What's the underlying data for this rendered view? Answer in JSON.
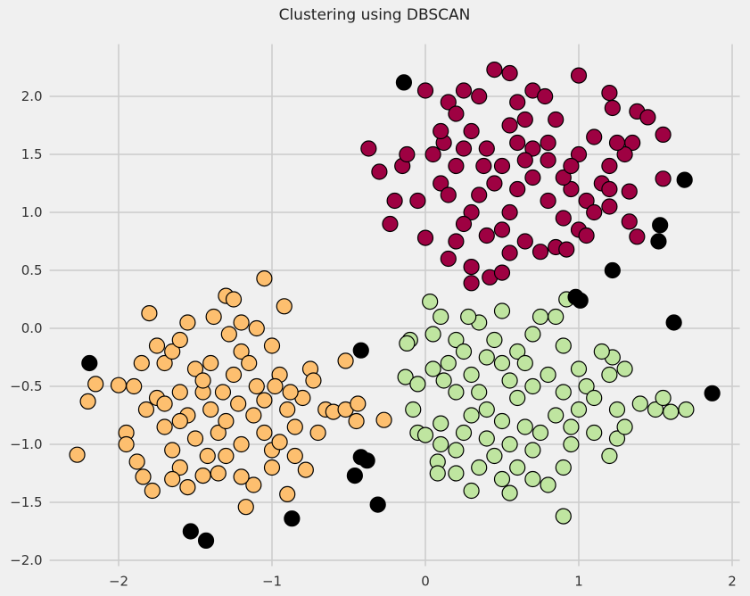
{
  "chart_data": {
    "type": "scatter",
    "title": "Clustering using DBSCAN",
    "xlabel": "",
    "ylabel": "",
    "xlim": [
      -2.45,
      2.05
    ],
    "ylim": [
      -2.05,
      2.45
    ],
    "xticks": [
      -2,
      -1,
      0,
      1,
      2
    ],
    "xtick_labels": [
      "−2",
      "−1",
      "0",
      "1",
      "2"
    ],
    "yticks": [
      -2.0,
      -1.5,
      -1.0,
      -0.5,
      0.0,
      0.5,
      1.0,
      1.5,
      2.0
    ],
    "ytick_labels": [
      "−2.0",
      "−1.5",
      "−1.0",
      "−0.5",
      "0.0",
      "0.5",
      "1.0",
      "1.5",
      "2.0"
    ],
    "grid": true,
    "background": "#f0f0f0",
    "grid_color": "#cbcbcb",
    "marker_edge_color": "#000000",
    "series": [
      {
        "color": "#9e0142",
        "points": [
          [
            -0.23,
            0.9
          ],
          [
            -0.2,
            1.1
          ],
          [
            -0.15,
            1.4
          ],
          [
            -0.12,
            1.5
          ],
          [
            -0.3,
            1.35
          ],
          [
            -0.37,
            1.55
          ],
          [
            -0.05,
            1.1
          ],
          [
            0.0,
            2.05
          ],
          [
            0.05,
            1.5
          ],
          [
            0.1,
            1.25
          ],
          [
            0.12,
            1.6
          ],
          [
            0.15,
            1.95
          ],
          [
            0.2,
            1.85
          ],
          [
            0.25,
            2.05
          ],
          [
            0.3,
            1.7
          ],
          [
            0.35,
            2.0
          ],
          [
            0.38,
            1.4
          ],
          [
            0.4,
            1.55
          ],
          [
            0.45,
            2.23
          ],
          [
            0.55,
            2.2
          ],
          [
            0.6,
            1.95
          ],
          [
            0.7,
            2.05
          ],
          [
            0.78,
            2.0
          ],
          [
            0.85,
            1.8
          ],
          [
            1.0,
            2.18
          ],
          [
            1.2,
            2.03
          ],
          [
            1.22,
            1.9
          ],
          [
            1.38,
            1.87
          ],
          [
            1.45,
            1.82
          ],
          [
            1.55,
            1.67
          ],
          [
            1.35,
            1.6
          ],
          [
            1.3,
            1.5
          ],
          [
            1.2,
            1.4
          ],
          [
            1.15,
            1.25
          ],
          [
            1.05,
            1.1
          ],
          [
            0.95,
            1.2
          ],
          [
            0.9,
            1.3
          ],
          [
            0.8,
            1.45
          ],
          [
            0.7,
            1.55
          ],
          [
            0.6,
            1.6
          ],
          [
            0.5,
            1.4
          ],
          [
            0.45,
            1.25
          ],
          [
            0.35,
            1.15
          ],
          [
            0.3,
            1.0
          ],
          [
            0.25,
            0.9
          ],
          [
            0.2,
            0.75
          ],
          [
            0.15,
            0.6
          ],
          [
            0.3,
            0.53
          ],
          [
            0.3,
            0.39
          ],
          [
            0.42,
            0.44
          ],
          [
            0.5,
            0.48
          ],
          [
            0.55,
            0.65
          ],
          [
            0.65,
            0.75
          ],
          [
            0.75,
            0.66
          ],
          [
            0.85,
            0.7
          ],
          [
            0.92,
            0.68
          ],
          [
            1.0,
            0.85
          ],
          [
            1.05,
            0.8
          ],
          [
            1.1,
            1.0
          ],
          [
            1.2,
            1.05
          ],
          [
            1.33,
            0.92
          ],
          [
            1.38,
            0.79
          ],
          [
            1.55,
            1.29
          ],
          [
            1.33,
            1.18
          ],
          [
            0.0,
            0.78
          ],
          [
            0.55,
            1.0
          ],
          [
            0.6,
            1.2
          ],
          [
            0.7,
            1.3
          ],
          [
            0.8,
            1.1
          ],
          [
            0.9,
            0.95
          ],
          [
            0.4,
            0.8
          ],
          [
            0.5,
            0.85
          ],
          [
            0.65,
            1.45
          ],
          [
            0.2,
            1.4
          ],
          [
            0.1,
            1.7
          ],
          [
            0.25,
            1.55
          ],
          [
            0.55,
            1.75
          ],
          [
            0.65,
            1.8
          ],
          [
            0.8,
            1.6
          ],
          [
            1.0,
            1.5
          ],
          [
            1.1,
            1.65
          ],
          [
            1.2,
            1.2
          ],
          [
            0.95,
            1.4
          ],
          [
            1.25,
            1.6
          ],
          [
            0.15,
            1.15
          ]
        ]
      },
      {
        "color": "#fdbf6f",
        "points": [
          [
            -2.27,
            -1.09
          ],
          [
            -2.2,
            -0.63
          ],
          [
            -2.15,
            -0.48
          ],
          [
            -2.0,
            -0.49
          ],
          [
            -1.9,
            -0.5
          ],
          [
            -1.95,
            -0.9
          ],
          [
            -1.95,
            -1.0
          ],
          [
            -1.88,
            -1.15
          ],
          [
            -1.84,
            -1.28
          ],
          [
            -1.78,
            -1.4
          ],
          [
            -1.8,
            0.13
          ],
          [
            -1.75,
            -0.15
          ],
          [
            -1.7,
            -0.3
          ],
          [
            -1.65,
            -0.2
          ],
          [
            -1.6,
            -0.1
          ],
          [
            -1.55,
            0.05
          ],
          [
            -1.5,
            -0.35
          ],
          [
            -1.45,
            -0.55
          ],
          [
            -1.4,
            -0.7
          ],
          [
            -1.35,
            -0.9
          ],
          [
            -1.3,
            -1.1
          ],
          [
            -1.25,
            -0.4
          ],
          [
            -1.2,
            -0.2
          ],
          [
            -1.15,
            -0.3
          ],
          [
            -1.1,
            0.0
          ],
          [
            -1.05,
            0.43
          ],
          [
            -1.3,
            0.28
          ],
          [
            -1.25,
            0.25
          ],
          [
            -1.0,
            -0.15
          ],
          [
            -0.92,
            0.19
          ],
          [
            -0.95,
            -0.4
          ],
          [
            -0.9,
            -0.7
          ],
          [
            -0.85,
            -0.85
          ],
          [
            -0.8,
            -0.6
          ],
          [
            -0.75,
            -0.35
          ],
          [
            -0.73,
            -0.45
          ],
          [
            -0.7,
            -0.9
          ],
          [
            -0.78,
            -1.22
          ],
          [
            -0.9,
            -1.43
          ],
          [
            -1.17,
            -1.54
          ],
          [
            -1.12,
            -1.35
          ],
          [
            -1.2,
            -1.28
          ],
          [
            -1.35,
            -1.25
          ],
          [
            -1.55,
            -1.37
          ],
          [
            -1.6,
            -1.2
          ],
          [
            -1.65,
            -1.05
          ],
          [
            -1.7,
            -0.85
          ],
          [
            -1.75,
            -0.6
          ],
          [
            -1.82,
            -0.7
          ],
          [
            -1.55,
            -0.75
          ],
          [
            -1.5,
            -0.95
          ],
          [
            -1.42,
            -1.1
          ],
          [
            -1.32,
            -0.55
          ],
          [
            -1.22,
            -0.65
          ],
          [
            -1.12,
            -0.75
          ],
          [
            -1.05,
            -0.9
          ],
          [
            -1.0,
            -1.05
          ],
          [
            -0.98,
            -0.5
          ],
          [
            -0.88,
            -0.55
          ],
          [
            -0.65,
            -0.7
          ],
          [
            -0.6,
            -0.72
          ],
          [
            -0.52,
            -0.7
          ],
          [
            -0.52,
            -0.28
          ],
          [
            -0.44,
            -0.65
          ],
          [
            -0.45,
            -0.8
          ],
          [
            -0.27,
            -0.79
          ],
          [
            -1.4,
            -0.3
          ],
          [
            -1.3,
            -0.8
          ],
          [
            -1.2,
            -1.0
          ],
          [
            -1.45,
            -0.45
          ],
          [
            -1.6,
            -0.55
          ],
          [
            -1.2,
            0.05
          ],
          [
            -1.1,
            -0.5
          ],
          [
            -1.05,
            -0.62
          ],
          [
            -1.38,
            0.1
          ],
          [
            -1.28,
            -0.05
          ],
          [
            -0.95,
            -0.98
          ],
          [
            -1.6,
            -0.8
          ],
          [
            -1.7,
            -0.65
          ],
          [
            -1.85,
            -0.3
          ],
          [
            -1.65,
            -1.3
          ],
          [
            -1.45,
            -1.27
          ],
          [
            -1.0,
            -1.2
          ],
          [
            -0.85,
            -1.1
          ]
        ]
      },
      {
        "color": "#bfe5a0",
        "points": [
          [
            0.03,
            0.23
          ],
          [
            0.1,
            0.1
          ],
          [
            0.05,
            -0.05
          ],
          [
            -0.1,
            -0.1
          ],
          [
            -0.12,
            -0.13
          ],
          [
            0.05,
            -0.35
          ],
          [
            0.12,
            -0.45
          ],
          [
            -0.13,
            -0.42
          ],
          [
            -0.05,
            -0.48
          ],
          [
            -0.08,
            -0.7
          ],
          [
            -0.05,
            -0.9
          ],
          [
            0.0,
            -0.92
          ],
          [
            0.1,
            -0.82
          ],
          [
            0.08,
            -1.15
          ],
          [
            0.08,
            -1.25
          ],
          [
            0.2,
            -1.05
          ],
          [
            0.25,
            -0.9
          ],
          [
            0.3,
            -1.4
          ],
          [
            0.35,
            -1.2
          ],
          [
            0.45,
            -1.1
          ],
          [
            0.5,
            -1.3
          ],
          [
            0.55,
            -1.42
          ],
          [
            0.6,
            -1.2
          ],
          [
            0.7,
            -1.3
          ],
          [
            0.8,
            -1.35
          ],
          [
            0.9,
            -1.62
          ],
          [
            0.9,
            -1.2
          ],
          [
            0.95,
            -1.0
          ],
          [
            1.1,
            -0.9
          ],
          [
            1.25,
            -0.95
          ],
          [
            1.2,
            -1.1
          ],
          [
            1.3,
            -0.85
          ],
          [
            1.4,
            -0.65
          ],
          [
            1.5,
            -0.7
          ],
          [
            1.55,
            -0.6
          ],
          [
            1.6,
            -0.72
          ],
          [
            1.7,
            -0.7
          ],
          [
            1.3,
            -0.35
          ],
          [
            1.2,
            -0.4
          ],
          [
            1.22,
            -0.25
          ],
          [
            1.0,
            -0.35
          ],
          [
            0.9,
            -0.15
          ],
          [
            0.85,
            0.1
          ],
          [
            0.92,
            0.25
          ],
          [
            0.75,
            0.1
          ],
          [
            0.7,
            -0.05
          ],
          [
            0.6,
            -0.2
          ],
          [
            0.5,
            -0.3
          ],
          [
            0.45,
            -0.1
          ],
          [
            0.35,
            0.05
          ],
          [
            0.28,
            0.1
          ],
          [
            0.2,
            -0.1
          ],
          [
            0.25,
            -0.2
          ],
          [
            0.3,
            -0.4
          ],
          [
            0.35,
            -0.55
          ],
          [
            0.4,
            -0.7
          ],
          [
            0.5,
            -0.8
          ],
          [
            0.6,
            -0.6
          ],
          [
            0.7,
            -0.5
          ],
          [
            0.8,
            -0.4
          ],
          [
            0.9,
            -0.55
          ],
          [
            1.0,
            -0.7
          ],
          [
            1.05,
            -0.5
          ],
          [
            1.1,
            -0.6
          ],
          [
            0.65,
            -0.85
          ],
          [
            0.75,
            -0.9
          ],
          [
            0.85,
            -0.75
          ],
          [
            0.55,
            -1.0
          ],
          [
            0.4,
            -0.95
          ],
          [
            0.3,
            -0.75
          ],
          [
            0.2,
            -0.55
          ],
          [
            0.15,
            -0.3
          ],
          [
            0.5,
            0.15
          ],
          [
            0.4,
            -0.25
          ],
          [
            1.15,
            -0.2
          ],
          [
            0.95,
            -0.85
          ],
          [
            0.7,
            -1.05
          ],
          [
            1.25,
            -0.7
          ],
          [
            0.2,
            -1.25
          ],
          [
            0.1,
            -1.0
          ],
          [
            0.65,
            -0.3
          ],
          [
            0.55,
            -0.45
          ]
        ]
      },
      {
        "color": "#000000",
        "points": [
          [
            -0.14,
            2.12
          ],
          [
            1.69,
            1.28
          ],
          [
            1.53,
            0.89
          ],
          [
            1.52,
            0.75
          ],
          [
            1.22,
            0.5
          ],
          [
            0.98,
            0.27
          ],
          [
            1.01,
            0.24
          ],
          [
            1.62,
            0.05
          ],
          [
            1.87,
            -0.56
          ],
          [
            -0.42,
            -0.19
          ],
          [
            -2.19,
            -0.3
          ],
          [
            -0.42,
            -1.11
          ],
          [
            -0.38,
            -1.14
          ],
          [
            -0.46,
            -1.27
          ],
          [
            -0.31,
            -1.52
          ],
          [
            -0.87,
            -1.64
          ],
          [
            -1.53,
            -1.75
          ],
          [
            -1.43,
            -1.83
          ]
        ]
      }
    ]
  }
}
